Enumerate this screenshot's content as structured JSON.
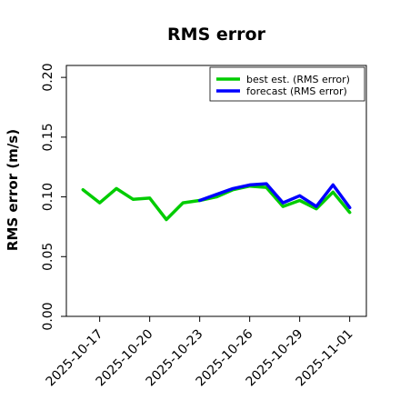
{
  "chart_data": {
    "type": "line",
    "title": "RMS error",
    "xlabel": "",
    "ylabel": "RMS error (m/s)",
    "xlim": [
      "2025-10-15",
      "2025-11-02"
    ],
    "ylim": [
      0.0,
      0.21
    ],
    "yticks": [
      "0.00",
      "0.05",
      "0.10",
      "0.15",
      "0.20"
    ],
    "xticks": [
      {
        "date": "2025-10-17",
        "label": "2025-10-17",
        "color": "#000000"
      },
      {
        "date": "2025-10-20",
        "label": "2025-10-20",
        "color": "#000000"
      },
      {
        "date": "2025-10-23",
        "label": "2025-10-23",
        "color": "#228B22"
      },
      {
        "date": "2025-10-26",
        "label": "2025-10-26",
        "color": "#000000"
      },
      {
        "date": "2025-10-29",
        "label": "2025-10-29",
        "color": "#000000"
      },
      {
        "date": "2025-11-01",
        "label": "2025-11-01",
        "color": "#000000"
      }
    ],
    "grid": false,
    "legend_position": "top-right",
    "series": [
      {
        "name": "best est. (RMS error)",
        "color": "#00cc00",
        "x": [
          "2025-10-16",
          "2025-10-17",
          "2025-10-18",
          "2025-10-19",
          "2025-10-20",
          "2025-10-21",
          "2025-10-22",
          "2025-10-23",
          "2025-10-24",
          "2025-10-25",
          "2025-10-26",
          "2025-10-27",
          "2025-10-28",
          "2025-10-29",
          "2025-10-30",
          "2025-10-31",
          "2025-11-01"
        ],
        "values": [
          0.106,
          0.095,
          0.107,
          0.098,
          0.099,
          0.081,
          0.095,
          0.097,
          0.1,
          0.106,
          0.109,
          0.108,
          0.092,
          0.097,
          0.09,
          0.104,
          0.087
        ]
      },
      {
        "name": "forecast (RMS error)",
        "color": "#0000ff",
        "x": [
          "2025-10-23",
          "2025-10-24",
          "2025-10-25",
          "2025-10-26",
          "2025-10-27",
          "2025-10-28",
          "2025-10-29",
          "2025-10-30",
          "2025-10-31",
          "2025-11-01"
        ],
        "values": [
          0.097,
          0.102,
          0.107,
          0.11,
          0.111,
          0.095,
          0.101,
          0.092,
          0.11,
          0.091
        ]
      }
    ]
  }
}
